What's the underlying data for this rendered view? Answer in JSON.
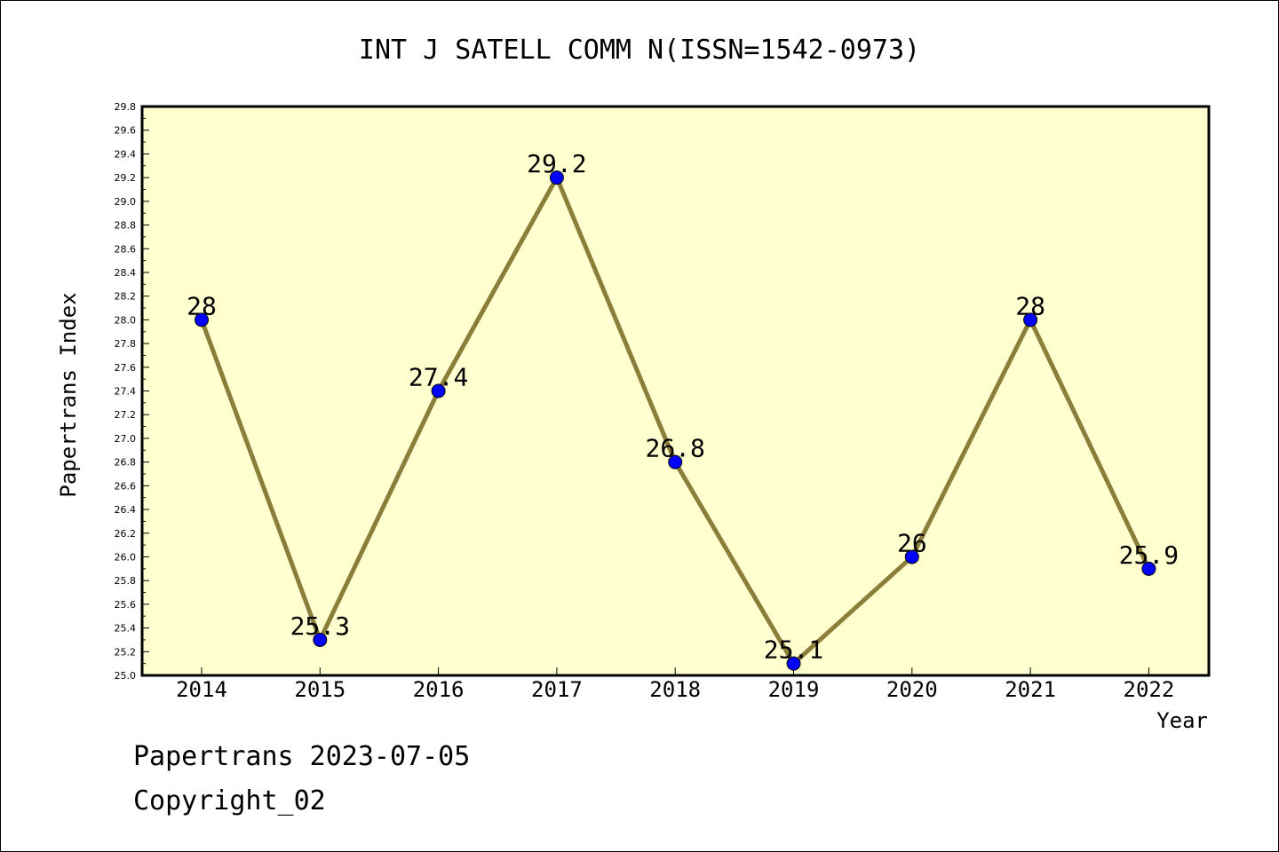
{
  "chart_data": {
    "type": "line",
    "title": "INT J SATELL COMM N(ISSN=1542-0973)",
    "xlabel": "Year",
    "ylabel": "Papertrans Index",
    "categories": [
      "2014",
      "2015",
      "2016",
      "2017",
      "2018",
      "2019",
      "2020",
      "2021",
      "2022"
    ],
    "series": [
      {
        "values": [
          28,
          25.3,
          27.4,
          29.2,
          26.8,
          25.1,
          26,
          28,
          25.9
        ],
        "data_labels": [
          "28",
          "25.3",
          "27.4",
          "29.2",
          "26.8",
          "25.1",
          "26",
          "28",
          "25.9"
        ],
        "line_color": "#8B7D3A",
        "marker_color": "#0000FF"
      }
    ],
    "ylim": [
      25.0,
      29.8
    ],
    "yticks": [
      "25.0",
      "25.2",
      "25.4",
      "25.6",
      "25.8",
      "26.0",
      "26.2",
      "26.4",
      "26.6",
      "26.8",
      "27.0",
      "27.2",
      "27.4",
      "27.6",
      "27.8",
      "28.0",
      "28.2",
      "28.4",
      "28.6",
      "28.8",
      "29.0",
      "29.2",
      "29.4",
      "29.6",
      "29.8"
    ],
    "plot_background": "#FFFFD0",
    "grid": false,
    "legend": "none"
  },
  "footer": {
    "line1": "Papertrans 2023-07-05",
    "line2": "Copyright_02"
  }
}
